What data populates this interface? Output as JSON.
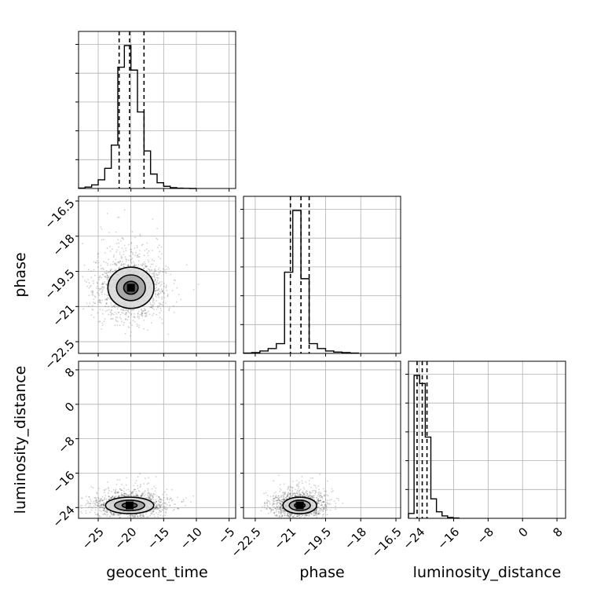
{
  "chart_data": {
    "type": "corner",
    "title": "",
    "parameters": [
      "geocent_time",
      "phase",
      "luminosity_distance"
    ],
    "colors": {
      "ink": "#000000",
      "grid": "#b0b0b0",
      "points": "#000000"
    },
    "grid": true,
    "axes": {
      "geocent_time": {
        "label": "geocent_time",
        "range": [
          -28,
          -4
        ],
        "ticks": [
          -25,
          -20,
          -15,
          -10,
          -5
        ]
      },
      "phase": {
        "label": "phase",
        "range": [
          -23.0,
          -16.3
        ],
        "ticks": [
          -16.5,
          -18.0,
          -19.5,
          -21.0,
          -22.5
        ]
      },
      "luminosity_distance": {
        "label": "luminosity_distance",
        "range": [
          -26.5,
          10
        ],
        "ticks": [
          8,
          0,
          -8,
          -16,
          -24
        ]
      }
    },
    "marginals": [
      {
        "param": "geocent_time",
        "quantiles": [
          -21.8,
          -20.2,
          -18.0
        ],
        "bins": [
          -28,
          -27,
          -26,
          -25,
          -24,
          -23,
          -22,
          -21,
          -20,
          -19,
          -18,
          -17,
          -16,
          -15,
          -14,
          -13,
          -12,
          -11,
          -10
        ],
        "counts": [
          0.3,
          1,
          2.5,
          6,
          14,
          30,
          84,
          99,
          82,
          53,
          26,
          10,
          4,
          1.5,
          0.6,
          0.2,
          0.1,
          0
        ]
      },
      {
        "param": "phase",
        "quantiles": [
          -21.0,
          -20.55,
          -20.2
        ],
        "bins": [
          -23.0,
          -22.65,
          -22.3,
          -21.95,
          -21.6,
          -21.25,
          -20.9,
          -20.55,
          -20.2,
          -19.85,
          -19.5,
          -19.15,
          -18.8,
          -18.45,
          -18.1
        ],
        "counts": [
          0.2,
          0.5,
          1.5,
          3,
          6,
          50,
          88,
          46,
          6,
          3,
          1.5,
          0.8,
          0.5,
          0.2
        ]
      },
      {
        "param": "luminosity_distance",
        "quantiles": [
          -24.5,
          -23.3,
          -22.2
        ],
        "bins": [
          -26.5,
          -25.2,
          -23.9,
          -22.6,
          -21.3,
          -20.0,
          -18.7,
          -17.4,
          -16.1,
          -14.8
        ],
        "counts": [
          3,
          88,
          83,
          50,
          12,
          4,
          1.5,
          0.5,
          0.2
        ]
      }
    ],
    "joint": [
      {
        "x": "geocent_time",
        "y": "phase",
        "mean": [
          -20.0,
          -20.2
        ],
        "spread": [
          2.2,
          0.55
        ],
        "contour_scales": [
          0.5,
          1.0,
          1.6
        ]
      },
      {
        "x": "geocent_time",
        "y": "luminosity_distance",
        "mean": [
          -20.2,
          -23.5
        ],
        "spread": [
          2.3,
          1.2
        ],
        "contour_scales": [
          0.5,
          1.0,
          1.6
        ]
      },
      {
        "x": "phase",
        "y": "luminosity_distance",
        "mean": [
          -20.6,
          -23.5
        ],
        "spread": [
          0.45,
          1.2
        ],
        "contour_scales": [
          0.5,
          1.0,
          1.6
        ]
      }
    ]
  }
}
